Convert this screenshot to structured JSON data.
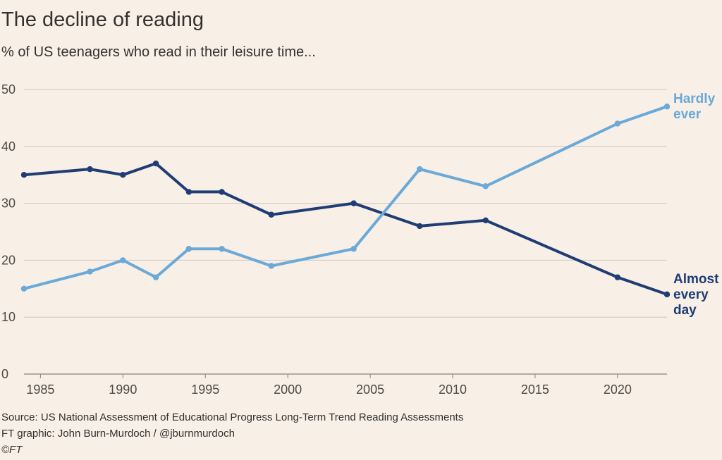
{
  "title": "The decline of reading",
  "subtitle": "% of US teenagers who read in their leisure time...",
  "footer": {
    "source": "Source: US National Assessment of Educational Progress Long-Term Trend Reading Assessments",
    "credit": "FT graphic: John Burn-Murdoch / @jburnmurdoch",
    "copyright": "©FT"
  },
  "colors": {
    "background": "#f8efe6",
    "almost_every_day": "#1f3d74",
    "hardly_ever": "#6aa9d8",
    "grid": "#cfc6bd"
  },
  "chart_data": {
    "type": "line",
    "title": "The decline of reading",
    "subtitle": "% of US teenagers who read in their leisure time...",
    "xlim": [
      1984,
      2023
    ],
    "ylim": [
      0,
      50
    ],
    "xticks": [
      1985,
      1990,
      1995,
      2000,
      2005,
      2010,
      2015,
      2020
    ],
    "yticks": [
      0,
      10,
      20,
      30,
      40,
      50
    ],
    "grid": true,
    "legend": "direct labels at line ends",
    "series": [
      {
        "name": "Almost every day",
        "label_lines": [
          "Almost",
          "every",
          "day"
        ],
        "color": "#1f3d74",
        "x": [
          1984,
          1988,
          1990,
          1992,
          1994,
          1996,
          1999,
          2004,
          2008,
          2012,
          2020,
          2023
        ],
        "y": [
          35,
          36,
          35,
          37,
          32,
          32,
          28,
          30,
          26,
          27,
          17,
          14
        ]
      },
      {
        "name": "Hardly ever",
        "label_lines": [
          "Hardly",
          "ever"
        ],
        "color": "#6aa9d8",
        "x": [
          1984,
          1988,
          1990,
          1992,
          1994,
          1996,
          1999,
          2004,
          2008,
          2012,
          2020,
          2023
        ],
        "y": [
          15,
          18,
          20,
          17,
          22,
          22,
          19,
          22,
          36,
          33,
          44,
          47
        ]
      }
    ]
  }
}
